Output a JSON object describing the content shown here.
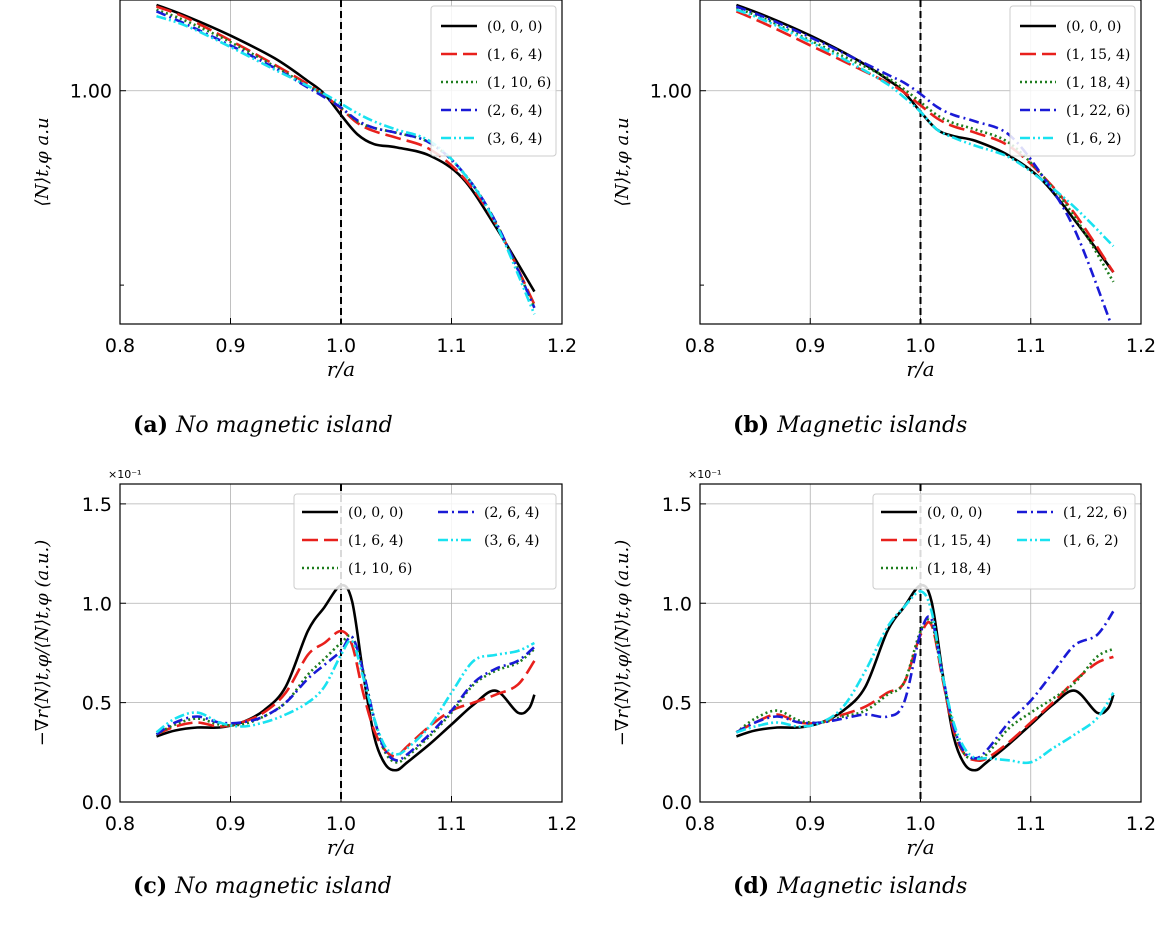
{
  "chart_data": [
    {
      "type": "line",
      "id": "a",
      "caption_label": "(a)",
      "caption_text": "No magnetic island",
      "ylabel": "⟨N⟩t,φ a.u",
      "xlabel": "r/a",
      "xlim": [
        0.8,
        1.2
      ],
      "ylim": [
        0.0,
        1.0
      ],
      "yscale": "log-like",
      "xticks": [
        "0.8",
        "0.9",
        "1.0",
        "1.1",
        "1.2"
      ],
      "yticks": [
        {
          "value": 0.72,
          "label": "1.00"
        }
      ],
      "ygrid_minor": [
        0.12
      ],
      "vline": 1.0,
      "legend_position": "top-right",
      "series": [
        {
          "name": "(0, 0, 0)",
          "color": "#000000",
          "dash": "solid",
          "x": [
            0.833,
            0.86,
            0.9,
            0.94,
            0.97,
            0.985,
            1.0,
            1.015,
            1.03,
            1.05,
            1.08,
            1.11,
            1.14,
            1.175
          ],
          "y": [
            0.985,
            0.95,
            0.89,
            0.82,
            0.75,
            0.71,
            0.645,
            0.585,
            0.555,
            0.545,
            0.52,
            0.45,
            0.3,
            0.1
          ]
        },
        {
          "name": "(1, 6, 4)",
          "color": "#e8201c",
          "dash": "long",
          "x": [
            0.833,
            0.86,
            0.9,
            0.94,
            0.97,
            0.985,
            1.0,
            1.015,
            1.03,
            1.05,
            1.08,
            1.11,
            1.14,
            1.175
          ],
          "y": [
            0.98,
            0.945,
            0.875,
            0.8,
            0.74,
            0.705,
            0.665,
            0.62,
            0.595,
            0.575,
            0.54,
            0.455,
            0.31,
            0.06
          ]
        },
        {
          "name": "(1, 10, 6)",
          "color": "#1e7d1e",
          "dash": "dot",
          "x": [
            0.833,
            0.86,
            0.9,
            0.94,
            0.97,
            0.985,
            1.0,
            1.015,
            1.03,
            1.05,
            1.08,
            1.11,
            1.14,
            1.175
          ],
          "y": [
            0.97,
            0.935,
            0.87,
            0.795,
            0.735,
            0.705,
            0.668,
            0.625,
            0.605,
            0.59,
            0.56,
            0.47,
            0.315,
            0.05
          ]
        },
        {
          "name": "(2, 6, 4)",
          "color": "#1a1ad6",
          "dash": "dashdot",
          "x": [
            0.833,
            0.86,
            0.9,
            0.94,
            0.97,
            0.985,
            1.0,
            1.015,
            1.03,
            1.05,
            1.08,
            1.11,
            1.14,
            1.175
          ],
          "y": [
            0.965,
            0.925,
            0.86,
            0.79,
            0.73,
            0.7,
            0.668,
            0.628,
            0.605,
            0.59,
            0.56,
            0.47,
            0.315,
            0.05
          ]
        },
        {
          "name": "(3, 6, 4)",
          "color": "#19e2f0",
          "dash": "dashdotdot",
          "x": [
            0.833,
            0.86,
            0.9,
            0.94,
            0.97,
            0.985,
            1.0,
            1.015,
            1.03,
            1.05,
            1.08,
            1.11,
            1.14,
            1.175
          ],
          "y": [
            0.95,
            0.92,
            0.855,
            0.785,
            0.735,
            0.71,
            0.68,
            0.65,
            0.625,
            0.6,
            0.565,
            0.47,
            0.31,
            0.03
          ]
        }
      ]
    },
    {
      "type": "line",
      "id": "b",
      "caption_label": "(b)",
      "caption_text": "Magnetic islands",
      "ylabel": "⟨N⟩t,φ a.u",
      "xlabel": "r/a",
      "xlim": [
        0.8,
        1.2
      ],
      "ylim": [
        0.0,
        1.0
      ],
      "yscale": "log-like",
      "xticks": [
        "0.8",
        "0.9",
        "1.0",
        "1.1",
        "1.2"
      ],
      "yticks": [
        {
          "value": 0.72,
          "label": "1.00"
        }
      ],
      "ygrid_minor": [
        0.12
      ],
      "vline": 1.0,
      "legend_position": "top-right",
      "series": [
        {
          "name": "(0, 0, 0)",
          "color": "#000000",
          "dash": "solid",
          "x": [
            0.833,
            0.86,
            0.9,
            0.94,
            0.97,
            0.985,
            1.0,
            1.015,
            1.03,
            1.05,
            1.08,
            1.11,
            1.14,
            1.175
          ],
          "y": [
            0.985,
            0.95,
            0.89,
            0.82,
            0.755,
            0.715,
            0.655,
            0.6,
            0.58,
            0.565,
            0.52,
            0.445,
            0.32,
            0.16
          ]
        },
        {
          "name": "(1, 15, 4)",
          "color": "#e8201c",
          "dash": "long",
          "x": [
            0.833,
            0.86,
            0.9,
            0.94,
            0.97,
            0.985,
            1.0,
            1.015,
            1.03,
            1.05,
            1.08,
            1.11,
            1.14,
            1.175
          ],
          "y": [
            0.965,
            0.925,
            0.86,
            0.795,
            0.745,
            0.715,
            0.675,
            0.635,
            0.61,
            0.59,
            0.55,
            0.46,
            0.34,
            0.16
          ]
        },
        {
          "name": "(1, 18, 4)",
          "color": "#1e7d1e",
          "dash": "dot",
          "x": [
            0.833,
            0.86,
            0.9,
            0.94,
            0.97,
            0.985,
            1.0,
            1.015,
            1.03,
            1.05,
            1.08,
            1.11,
            1.14,
            1.175
          ],
          "y": [
            0.975,
            0.94,
            0.875,
            0.81,
            0.76,
            0.725,
            0.685,
            0.645,
            0.62,
            0.6,
            0.56,
            0.46,
            0.33,
            0.13
          ]
        },
        {
          "name": "(1, 22, 6)",
          "color": "#1a1ad6",
          "dash": "dashdot",
          "x": [
            0.833,
            0.86,
            0.9,
            0.94,
            0.97,
            0.985,
            1.0,
            1.015,
            1.03,
            1.05,
            1.08,
            1.11,
            1.14,
            1.175
          ],
          "y": [
            0.98,
            0.945,
            0.885,
            0.82,
            0.77,
            0.745,
            0.71,
            0.67,
            0.645,
            0.625,
            0.585,
            0.46,
            0.29,
            -0.02
          ]
        },
        {
          "name": "(1, 6, 2)",
          "color": "#19e2f0",
          "dash": "dashdotdot",
          "x": [
            0.833,
            0.86,
            0.9,
            0.94,
            0.97,
            0.985,
            1.0,
            1.015,
            1.03,
            1.05,
            1.08,
            1.11,
            1.14,
            1.175
          ],
          "y": [
            0.97,
            0.935,
            0.87,
            0.8,
            0.74,
            0.7,
            0.655,
            0.6,
            0.575,
            0.55,
            0.515,
            0.445,
            0.36,
            0.24
          ]
        }
      ]
    },
    {
      "type": "line",
      "id": "c",
      "caption_label": "(c)",
      "caption_text": "No magnetic island",
      "ylabel": "−∇r⟨N⟩t,φ/⟨N⟩t,φ (a.u.)",
      "xlabel": "r/a",
      "multiplier": "×10⁻¹",
      "xlim": [
        0.8,
        1.2
      ],
      "ylim": [
        0.0,
        1.6
      ],
      "xticks": [
        "0.8",
        "0.9",
        "1.0",
        "1.1",
        "1.2"
      ],
      "yticks": [
        "0.0",
        "0.5",
        "1.0",
        "1.5"
      ],
      "vline": 1.0,
      "legend_position": "top-right",
      "series": [
        {
          "name": "(0, 0, 0)",
          "color": "#000000",
          "dash": "solid",
          "x": [
            0.833,
            0.85,
            0.87,
            0.89,
            0.91,
            0.93,
            0.95,
            0.97,
            0.985,
            1.0,
            1.01,
            1.02,
            1.03,
            1.04,
            1.05,
            1.06,
            1.08,
            1.1,
            1.12,
            1.14,
            1.16,
            1.17,
            1.175
          ],
          "y": [
            0.33,
            0.36,
            0.375,
            0.375,
            0.4,
            0.46,
            0.58,
            0.86,
            0.98,
            1.09,
            1.01,
            0.65,
            0.33,
            0.19,
            0.16,
            0.2,
            0.29,
            0.39,
            0.49,
            0.56,
            0.45,
            0.47,
            0.54
          ]
        },
        {
          "name": "(1, 6, 4)",
          "color": "#e8201c",
          "dash": "long",
          "x": [
            0.833,
            0.85,
            0.87,
            0.89,
            0.91,
            0.93,
            0.95,
            0.97,
            0.985,
            1.0,
            1.01,
            1.02,
            1.03,
            1.04,
            1.05,
            1.06,
            1.08,
            1.1,
            1.12,
            1.14,
            1.16,
            1.175
          ],
          "y": [
            0.34,
            0.38,
            0.4,
            0.38,
            0.4,
            0.45,
            0.55,
            0.74,
            0.8,
            0.86,
            0.79,
            0.55,
            0.36,
            0.26,
            0.23,
            0.28,
            0.38,
            0.46,
            0.5,
            0.54,
            0.59,
            0.71
          ]
        },
        {
          "name": "(1, 10, 6)",
          "color": "#1e7d1e",
          "dash": "dot",
          "x": [
            0.833,
            0.85,
            0.87,
            0.89,
            0.91,
            0.93,
            0.95,
            0.97,
            0.985,
            1.0,
            1.01,
            1.02,
            1.03,
            1.04,
            1.05,
            1.06,
            1.08,
            1.1,
            1.12,
            1.14,
            1.16,
            1.175
          ],
          "y": [
            0.34,
            0.39,
            0.42,
            0.39,
            0.39,
            0.43,
            0.5,
            0.64,
            0.72,
            0.8,
            0.83,
            0.66,
            0.42,
            0.25,
            0.2,
            0.23,
            0.33,
            0.45,
            0.59,
            0.66,
            0.7,
            0.77
          ]
        },
        {
          "name": "(2, 6, 4)",
          "color": "#1a1ad6",
          "dash": "dashdot",
          "x": [
            0.833,
            0.85,
            0.87,
            0.89,
            0.91,
            0.93,
            0.95,
            0.97,
            0.985,
            1.0,
            1.01,
            1.02,
            1.03,
            1.04,
            1.05,
            1.06,
            1.08,
            1.1,
            1.12,
            1.14,
            1.16,
            1.175
          ],
          "y": [
            0.34,
            0.4,
            0.43,
            0.4,
            0.4,
            0.43,
            0.5,
            0.62,
            0.69,
            0.76,
            0.83,
            0.66,
            0.42,
            0.26,
            0.21,
            0.24,
            0.34,
            0.46,
            0.6,
            0.67,
            0.71,
            0.78
          ]
        },
        {
          "name": "(3, 6, 4)",
          "color": "#19e2f0",
          "dash": "dashdotdot",
          "x": [
            0.833,
            0.85,
            0.87,
            0.89,
            0.91,
            0.93,
            0.95,
            0.97,
            0.985,
            1.0,
            1.01,
            1.02,
            1.03,
            1.04,
            1.05,
            1.06,
            1.08,
            1.1,
            1.12,
            1.14,
            1.16,
            1.175
          ],
          "y": [
            0.35,
            0.42,
            0.45,
            0.4,
            0.38,
            0.4,
            0.44,
            0.5,
            0.58,
            0.74,
            0.81,
            0.63,
            0.42,
            0.28,
            0.24,
            0.27,
            0.38,
            0.55,
            0.71,
            0.74,
            0.76,
            0.8
          ]
        }
      ]
    },
    {
      "type": "line",
      "id": "d",
      "caption_label": "(d)",
      "caption_text": "Magnetic islands",
      "ylabel": "−∇r⟨N⟩t,φ/⟨N⟩t,φ (a.u.)",
      "xlabel": "r/a",
      "multiplier": "×10⁻¹",
      "xlim": [
        0.8,
        1.2
      ],
      "ylim": [
        0.0,
        1.6
      ],
      "xticks": [
        "0.8",
        "0.9",
        "1.0",
        "1.1",
        "1.2"
      ],
      "yticks": [
        "0.0",
        "0.5",
        "1.0",
        "1.5"
      ],
      "vline": 1.0,
      "legend_position": "top-right",
      "series": [
        {
          "name": "(0, 0, 0)",
          "color": "#000000",
          "dash": "solid",
          "x": [
            0.833,
            0.85,
            0.87,
            0.89,
            0.91,
            0.93,
            0.95,
            0.97,
            0.985,
            1.0,
            1.01,
            1.02,
            1.03,
            1.04,
            1.05,
            1.06,
            1.08,
            1.1,
            1.12,
            1.14,
            1.16,
            1.17,
            1.175
          ],
          "y": [
            0.33,
            0.36,
            0.375,
            0.375,
            0.4,
            0.46,
            0.58,
            0.86,
            0.98,
            1.09,
            1.01,
            0.65,
            0.33,
            0.19,
            0.16,
            0.2,
            0.29,
            0.39,
            0.49,
            0.56,
            0.45,
            0.47,
            0.54
          ]
        },
        {
          "name": "(1, 15, 4)",
          "color": "#e8201c",
          "dash": "long",
          "x": [
            0.833,
            0.85,
            0.87,
            0.89,
            0.91,
            0.93,
            0.95,
            0.97,
            0.985,
            1.0,
            1.01,
            1.02,
            1.03,
            1.04,
            1.05,
            1.06,
            1.08,
            1.1,
            1.12,
            1.14,
            1.16,
            1.175
          ],
          "y": [
            0.35,
            0.4,
            0.44,
            0.4,
            0.4,
            0.44,
            0.48,
            0.55,
            0.6,
            0.84,
            0.89,
            0.62,
            0.36,
            0.24,
            0.21,
            0.22,
            0.3,
            0.4,
            0.5,
            0.61,
            0.7,
            0.73
          ]
        },
        {
          "name": "(1, 18, 4)",
          "color": "#1e7d1e",
          "dash": "dot",
          "x": [
            0.833,
            0.85,
            0.87,
            0.89,
            0.91,
            0.93,
            0.95,
            0.97,
            0.985,
            1.0,
            1.01,
            1.02,
            1.03,
            1.04,
            1.05,
            1.06,
            1.08,
            1.1,
            1.12,
            1.14,
            1.16,
            1.175
          ],
          "y": [
            0.35,
            0.42,
            0.46,
            0.41,
            0.4,
            0.43,
            0.46,
            0.54,
            0.6,
            0.86,
            0.9,
            0.63,
            0.38,
            0.24,
            0.22,
            0.24,
            0.37,
            0.45,
            0.52,
            0.6,
            0.73,
            0.77
          ]
        },
        {
          "name": "(1, 22, 6)",
          "color": "#1a1ad6",
          "dash": "dashdot",
          "x": [
            0.833,
            0.85,
            0.87,
            0.89,
            0.91,
            0.93,
            0.95,
            0.97,
            0.985,
            1.0,
            1.01,
            1.02,
            1.03,
            1.04,
            1.05,
            1.06,
            1.08,
            1.1,
            1.12,
            1.14,
            1.16,
            1.175
          ],
          "y": [
            0.35,
            0.4,
            0.43,
            0.4,
            0.4,
            0.42,
            0.44,
            0.43,
            0.5,
            0.85,
            0.92,
            0.64,
            0.38,
            0.25,
            0.22,
            0.26,
            0.4,
            0.51,
            0.65,
            0.79,
            0.84,
            0.96
          ]
        },
        {
          "name": "(1, 6, 2)",
          "color": "#19e2f0",
          "dash": "dashdotdot",
          "x": [
            0.833,
            0.85,
            0.87,
            0.89,
            0.91,
            0.93,
            0.95,
            0.97,
            0.985,
            1.0,
            1.01,
            1.02,
            1.03,
            1.04,
            1.05,
            1.06,
            1.08,
            1.1,
            1.12,
            1.14,
            1.16,
            1.175
          ],
          "y": [
            0.35,
            0.38,
            0.4,
            0.38,
            0.4,
            0.48,
            0.66,
            0.88,
            0.98,
            1.06,
            0.96,
            0.64,
            0.4,
            0.27,
            0.22,
            0.22,
            0.21,
            0.2,
            0.27,
            0.34,
            0.42,
            0.55
          ]
        }
      ]
    }
  ]
}
